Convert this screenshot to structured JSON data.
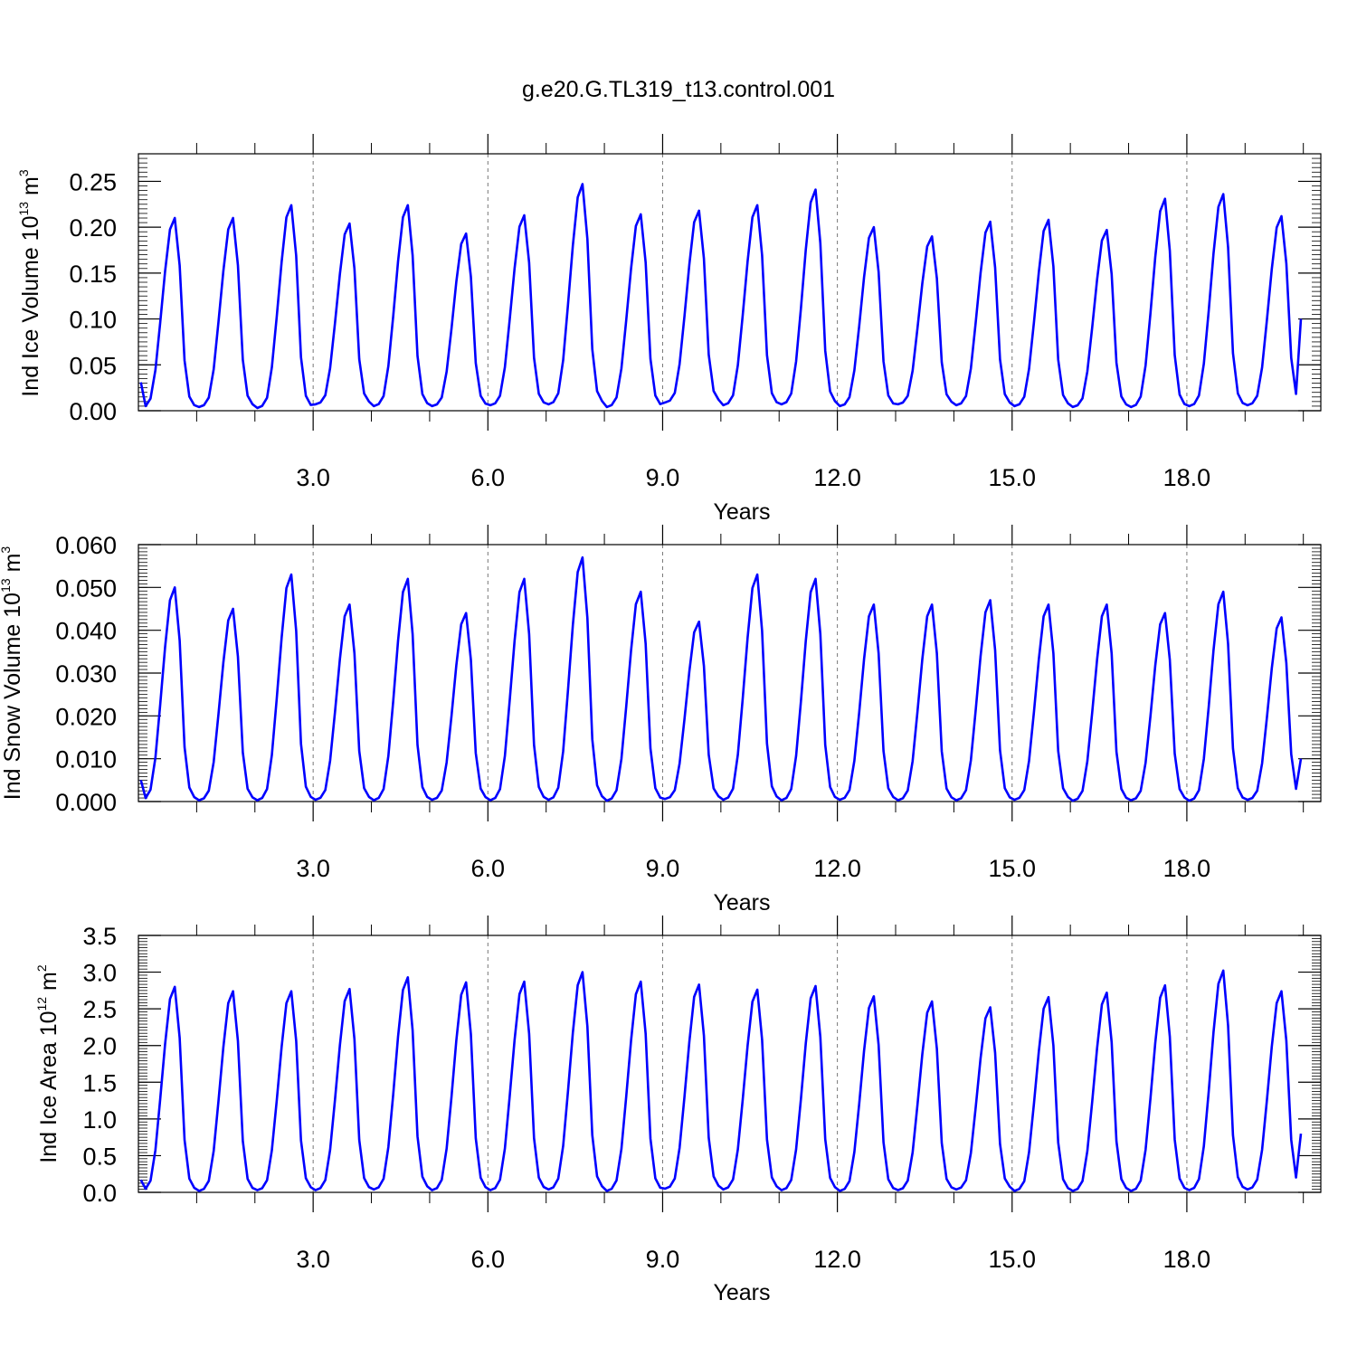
{
  "title": "g.e20.G.TL319_t13.control.001",
  "colors": {
    "series": "#0000ff",
    "axes": "#000000",
    "grid": "#777777"
  },
  "chart_data": [
    {
      "type": "line",
      "ylabel": {
        "main": "Ind Ice Volume 10",
        "sup": "13",
        "unit": " m",
        "unit_sup": "3"
      },
      "xlabel": "Years",
      "xlim": [
        0,
        20.3
      ],
      "ylim": [
        0,
        0.28
      ],
      "yticks": [
        0.0,
        0.05,
        0.1,
        0.15,
        0.2,
        0.25
      ],
      "ytick_labels": [
        "0.00",
        "0.05",
        "0.10",
        "0.15",
        "0.20",
        "0.25"
      ],
      "xticks": [
        3,
        6,
        9,
        12,
        15,
        18
      ],
      "xtick_labels": [
        "3.0",
        "6.0",
        "9.0",
        "12.0",
        "15.0",
        "18.0"
      ],
      "vgrid": [
        3,
        6,
        9,
        12,
        15,
        18
      ],
      "series_mins": [
        0.003,
        0.004,
        0.003,
        0.007,
        0.005,
        0.005,
        0.006,
        0.007,
        0.004,
        0.009,
        0.006,
        0.007,
        0.005,
        0.007,
        0.006,
        0.005,
        0.004,
        0.004,
        0.005,
        0.006
      ],
      "series_peaks": [
        0.21,
        0.21,
        0.224,
        0.204,
        0.224,
        0.193,
        0.213,
        0.247,
        0.214,
        0.218,
        0.224,
        0.241,
        0.2,
        0.19,
        0.206,
        0.208,
        0.197,
        0.231,
        0.236,
        0.212
      ],
      "end_value": 0.1,
      "start_value": 0.031
    },
    {
      "type": "line",
      "ylabel": {
        "main": "Ind Snow Volume 10",
        "sup": "13",
        "unit": " m",
        "unit_sup": "3"
      },
      "xlabel": "Years",
      "xlim": [
        0,
        20.3
      ],
      "ylim": [
        0,
        0.06
      ],
      "yticks": [
        0.0,
        0.01,
        0.02,
        0.03,
        0.04,
        0.05,
        0.06
      ],
      "ytick_labels": [
        "0.000",
        "0.010",
        "0.020",
        "0.030",
        "0.040",
        "0.050",
        "0.060"
      ],
      "xticks": [
        3,
        6,
        9,
        12,
        15,
        18
      ],
      "xtick_labels": [
        "3.0",
        "6.0",
        "9.0",
        "12.0",
        "15.0",
        "18.0"
      ],
      "vgrid": [
        3,
        6,
        9,
        12,
        15,
        18
      ],
      "series_mins": [
        0.0003,
        0.0003,
        0.0003,
        0.0004,
        0.0003,
        0.0004,
        0.0003,
        0.0004,
        0.0002,
        0.0006,
        0.0004,
        0.0003,
        0.0004,
        0.0003,
        0.0003,
        0.0004,
        0.0002,
        0.0003,
        0.0002,
        0.0004
      ],
      "series_peaks": [
        0.05,
        0.045,
        0.053,
        0.046,
        0.052,
        0.044,
        0.052,
        0.057,
        0.049,
        0.042,
        0.053,
        0.052,
        0.046,
        0.046,
        0.047,
        0.046,
        0.046,
        0.044,
        0.049,
        0.043
      ],
      "end_value": 0.01,
      "start_value": 0.005
    },
    {
      "type": "line",
      "ylabel": {
        "main": "Ind Ice Area 10",
        "sup": "12",
        "unit": " m",
        "unit_sup": "2"
      },
      "xlabel": "Years",
      "xlim": [
        0,
        20.3
      ],
      "ylim": [
        0,
        3.5
      ],
      "yticks": [
        0.0,
        0.5,
        1.0,
        1.5,
        2.0,
        2.5,
        3.0,
        3.5
      ],
      "ytick_labels": [
        "0.0",
        "0.5",
        "1.0",
        "1.5",
        "2.0",
        "2.5",
        "3.0",
        "3.5"
      ],
      "xticks": [
        3,
        6,
        9,
        12,
        15,
        18
      ],
      "xtick_labels": [
        "3.0",
        "6.0",
        "9.0",
        "12.0",
        "15.0",
        "18.0"
      ],
      "vgrid": [
        3,
        6,
        9,
        12,
        15,
        18
      ],
      "series_mins": [
        0.02,
        0.02,
        0.03,
        0.03,
        0.04,
        0.03,
        0.03,
        0.04,
        0.02,
        0.05,
        0.04,
        0.03,
        0.02,
        0.03,
        0.04,
        0.02,
        0.02,
        0.02,
        0.03,
        0.04
      ],
      "series_peaks": [
        2.8,
        2.74,
        2.74,
        2.77,
        2.93,
        2.86,
        2.87,
        3.0,
        2.87,
        2.83,
        2.76,
        2.81,
        2.67,
        2.6,
        2.52,
        2.66,
        2.72,
        2.82,
        3.02,
        2.74
      ],
      "end_value": 0.8,
      "start_value": 0.17
    }
  ]
}
